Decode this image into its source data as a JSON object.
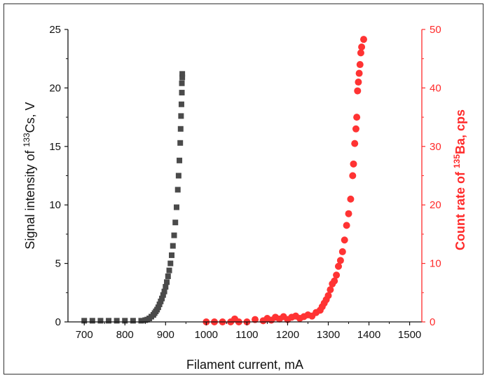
{
  "chart_data": {
    "type": "scatter",
    "xlabel": "Filament current, mA",
    "ylabel_left": {
      "pre": "Signal intensity of ",
      "sup": "133",
      "post": "Cs, V"
    },
    "ylabel_right": {
      "pre": "Count rate of ",
      "sup": "135",
      "post": "Ba, cps"
    },
    "xlim": [
      660,
      1530
    ],
    "ylim_left": [
      0,
      25
    ],
    "ylim_right": [
      0,
      50
    ],
    "xticks": [
      700,
      800,
      900,
      1000,
      1100,
      1200,
      1300,
      1400,
      1500
    ],
    "yticks_left": [
      0,
      5,
      10,
      15,
      20,
      25
    ],
    "yticks_right": [
      0,
      10,
      20,
      30,
      40,
      50
    ],
    "colors": {
      "left_series": "#4a4a4a",
      "right_series": "#ff3333",
      "right_axis": "#ff2a2a",
      "left_axis": "#111111"
    },
    "series": [
      {
        "axis": "left",
        "marker": "square",
        "points": [
          [
            700,
            0.1
          ],
          [
            720,
            0.1
          ],
          [
            740,
            0.1
          ],
          [
            760,
            0.1
          ],
          [
            780,
            0.1
          ],
          [
            800,
            0.1
          ],
          [
            820,
            0.1
          ],
          [
            840,
            0.1
          ],
          [
            850,
            0.15
          ],
          [
            855,
            0.2
          ],
          [
            860,
            0.3
          ],
          [
            865,
            0.45
          ],
          [
            870,
            0.6
          ],
          [
            873,
            0.75
          ],
          [
            876,
            0.9
          ],
          [
            879,
            1.05
          ],
          [
            882,
            1.25
          ],
          [
            885,
            1.5
          ],
          [
            888,
            1.75
          ],
          [
            891,
            2.0
          ],
          [
            894,
            2.3
          ],
          [
            897,
            2.6
          ],
          [
            900,
            3.0
          ],
          [
            903,
            3.4
          ],
          [
            906,
            3.9
          ],
          [
            909,
            4.4
          ],
          [
            912,
            5.0
          ],
          [
            915,
            5.7
          ],
          [
            918,
            6.5
          ],
          [
            921,
            7.4
          ],
          [
            924,
            8.5
          ],
          [
            927,
            9.8
          ],
          [
            930,
            11.3
          ],
          [
            932,
            12.5
          ],
          [
            934,
            13.8
          ],
          [
            936,
            15.3
          ],
          [
            937,
            16.5
          ],
          [
            938,
            17.6
          ],
          [
            939,
            18.6
          ],
          [
            940,
            19.6
          ],
          [
            940,
            20.4
          ],
          [
            941,
            21.2
          ],
          [
            941,
            20.9
          ]
        ]
      },
      {
        "axis": "right",
        "marker": "circle",
        "points": [
          [
            1000,
            0
          ],
          [
            1020,
            0
          ],
          [
            1040,
            0
          ],
          [
            1060,
            0
          ],
          [
            1070,
            0.5
          ],
          [
            1080,
            0
          ],
          [
            1100,
            0
          ],
          [
            1120,
            0.4
          ],
          [
            1140,
            0.2
          ],
          [
            1150,
            0.6
          ],
          [
            1160,
            0.3
          ],
          [
            1170,
            0.8
          ],
          [
            1180,
            0.5
          ],
          [
            1190,
            0.9
          ],
          [
            1200,
            0.4
          ],
          [
            1210,
            0.8
          ],
          [
            1220,
            1.0
          ],
          [
            1230,
            0.6
          ],
          [
            1240,
            0.9
          ],
          [
            1250,
            1.2
          ],
          [
            1260,
            1.0
          ],
          [
            1270,
            1.6
          ],
          [
            1280,
            2.0
          ],
          [
            1285,
            2.6
          ],
          [
            1290,
            3.2
          ],
          [
            1295,
            3.8
          ],
          [
            1300,
            4.5
          ],
          [
            1305,
            5.5
          ],
          [
            1310,
            6.5
          ],
          [
            1315,
            7.0
          ],
          [
            1320,
            8.0
          ],
          [
            1325,
            9.5
          ],
          [
            1330,
            10.5
          ],
          [
            1335,
            12.0
          ],
          [
            1340,
            14.0
          ],
          [
            1345,
            16.5
          ],
          [
            1350,
            18.5
          ],
          [
            1355,
            21.0
          ],
          [
            1360,
            25.0
          ],
          [
            1362,
            27.0
          ],
          [
            1365,
            30.5
          ],
          [
            1368,
            33.0
          ],
          [
            1370,
            35.0
          ],
          [
            1372,
            39.5
          ],
          [
            1374,
            41.0
          ],
          [
            1376,
            42.5
          ],
          [
            1378,
            44.0
          ],
          [
            1380,
            46.0
          ],
          [
            1382,
            47.0
          ],
          [
            1387,
            48.3
          ]
        ]
      }
    ]
  }
}
